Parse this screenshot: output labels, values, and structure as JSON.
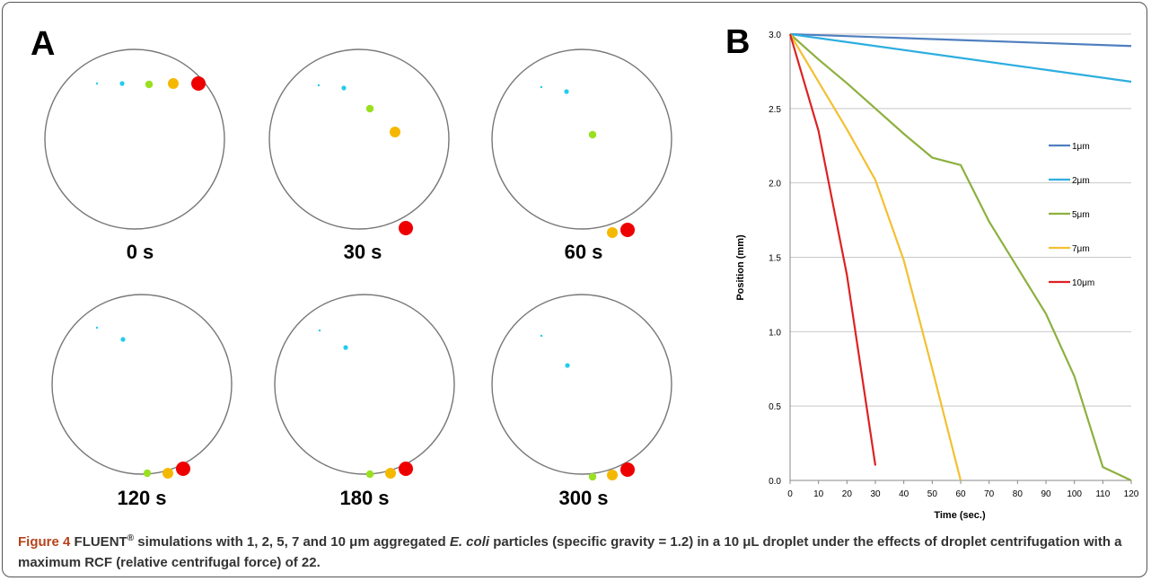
{
  "panel_a": {
    "label": "A",
    "frames": [
      {
        "time": "0 s"
      },
      {
        "time": "30 s"
      },
      {
        "time": "60 s"
      },
      {
        "time": "120 s"
      },
      {
        "time": "180 s"
      },
      {
        "time": "300 s"
      }
    ],
    "particle_colors": {
      "1um": "#22ccee",
      "2um": "#22ccee",
      "5um": "#99e020",
      "7um": "#f5b800",
      "10um": "#ee0000"
    }
  },
  "panel_b": {
    "label": "B"
  },
  "chart_data": {
    "type": "line",
    "title": "",
    "xlabel": "Time (sec.)",
    "ylabel": "Position (mm)",
    "xlim": [
      0,
      120
    ],
    "ylim": [
      0,
      3.0
    ],
    "xticks": [
      "0",
      "10",
      "20",
      "30",
      "40",
      "50",
      "60",
      "70",
      "80",
      "90",
      "100",
      "110",
      "120"
    ],
    "yticks": [
      "0.0",
      "0.5",
      "1.0",
      "1.5",
      "2.0",
      "2.5",
      "3.0"
    ],
    "grid": "horizontal",
    "legend_position": "right",
    "series": [
      {
        "name": "1μm",
        "color": "#4f7fbf",
        "x": [
          0,
          30,
          60,
          90,
          120
        ],
        "y": [
          3.0,
          2.98,
          2.96,
          2.94,
          2.92
        ]
      },
      {
        "name": "2μm",
        "color": "#2eaee0",
        "x": [
          0,
          30,
          60,
          90,
          120
        ],
        "y": [
          3.0,
          2.92,
          2.84,
          2.76,
          2.68
        ]
      },
      {
        "name": "5μm",
        "color": "#8db03f",
        "x": [
          0,
          10,
          20,
          30,
          40,
          50,
          60,
          70,
          80,
          90,
          100,
          110,
          120
        ],
        "y": [
          3.0,
          2.83,
          2.67,
          2.5,
          2.33,
          2.17,
          2.12,
          1.74,
          1.43,
          1.12,
          0.7,
          0.09,
          0.0
        ]
      },
      {
        "name": "7μm",
        "color": "#f3c033",
        "x": [
          0,
          10,
          20,
          30,
          40,
          50,
          60
        ],
        "y": [
          3.0,
          2.68,
          2.36,
          2.02,
          1.48,
          0.75,
          0.0
        ]
      },
      {
        "name": "10μm",
        "color": "#dd2222",
        "x": [
          0,
          10,
          20,
          30
        ],
        "y": [
          3.0,
          2.35,
          1.38,
          0.1
        ]
      }
    ]
  },
  "caption": {
    "figure_label": "Figure 4",
    "part1": " FLUENT",
    "reg": "®",
    "part2": " simulations with 1, 2, 5, 7 and 10 μm aggregated ",
    "species": "E. coli",
    "part3": " particles (specific gravity = 1.2) in a 10 μL droplet under the effects of droplet centrifugation with a maximum RCF (relative centrifugal force) of 22."
  }
}
